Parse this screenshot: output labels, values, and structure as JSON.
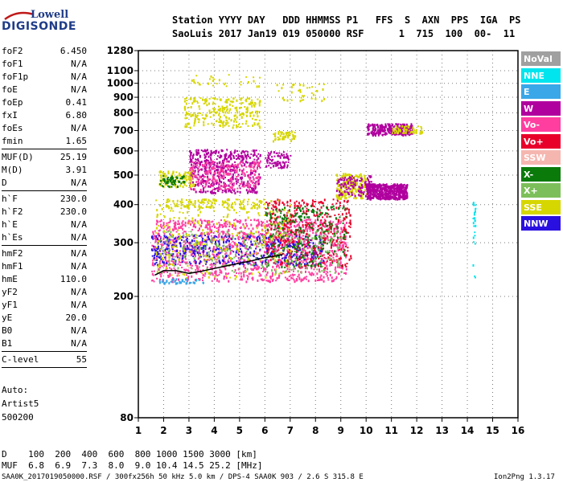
{
  "logo": {
    "line1": "Lowell",
    "line2": "DIGISONDE"
  },
  "header": {
    "row1": "Station YYYY DAY   DDD HHMMSS P1   FFS  S  AXN  PPS  IGA  PS",
    "row2": "SaoLuis 2017 Jan19 019 050000 RSF      1  715  100  00-  11"
  },
  "params_groups": [
    [
      {
        "name": "foF2",
        "value": "6.450"
      },
      {
        "name": "foF1",
        "value": "N/A"
      },
      {
        "name": "foF1p",
        "value": "N/A"
      },
      {
        "name": "foE",
        "value": "N/A"
      },
      {
        "name": "foEp",
        "value": "0.41"
      },
      {
        "name": "fxI",
        "value": "6.80"
      },
      {
        "name": "foEs",
        "value": "N/A"
      },
      {
        "name": "fmin",
        "value": "1.65"
      }
    ],
    [
      {
        "name": "MUF(D)",
        "value": "25.19"
      },
      {
        "name": "M(D)",
        "value": "3.91"
      },
      {
        "name": "D",
        "value": "N/A"
      }
    ],
    [
      {
        "name": "h`F",
        "value": "230.0"
      },
      {
        "name": "h`F2",
        "value": "230.0"
      },
      {
        "name": "h`E",
        "value": "N/A"
      },
      {
        "name": "h`Es",
        "value": "N/A"
      }
    ],
    [
      {
        "name": "hmF2",
        "value": "N/A"
      },
      {
        "name": "hmF1",
        "value": "N/A"
      },
      {
        "name": "hmE",
        "value": "110.0"
      },
      {
        "name": "yF2",
        "value": "N/A"
      },
      {
        "name": "yF1",
        "value": "N/A"
      },
      {
        "name": "yE",
        "value": "20.0"
      },
      {
        "name": "B0",
        "value": "N/A"
      },
      {
        "name": "B1",
        "value": "N/A"
      }
    ],
    [
      {
        "name": "C-level",
        "value": "55"
      }
    ]
  ],
  "notes": [
    "Auto:",
    "Artist5",
    "500200"
  ],
  "legend": [
    {
      "label": "NoVal",
      "color": "#a0a0a0"
    },
    {
      "label": "NNE",
      "color": "#00e5ee"
    },
    {
      "label": "E",
      "color": "#3aa7e8"
    },
    {
      "label": "W",
      "color": "#b0009e"
    },
    {
      "label": "Vo-",
      "color": "#ff3ea0"
    },
    {
      "label": "Vo+",
      "color": "#e8002a"
    },
    {
      "label": "SSW",
      "color": "#f5b6b0"
    },
    {
      "label": "X-",
      "color": "#0a7a0a"
    },
    {
      "label": "X+",
      "color": "#7cbf5a"
    },
    {
      "label": "SSE",
      "color": "#d6d600"
    },
    {
      "label": "NNW",
      "color": "#2a10e0"
    }
  ],
  "bottom": {
    "d_row": "D    100  200  400  600  800 1000 1500 3000 [km]",
    "muf_row": "MUF  6.8  6.9  7.3  8.0  9.0 10.4 14.5 25.2 [MHz]"
  },
  "footer": {
    "left": "SAA0K_2017019050000.RSF / 300fx256h 50 kHz 5.0 km / DPS-4 SAA0K 903 / 2.6 S 315.8 E",
    "right": "Ion2Png 1.3.17"
  },
  "chart_data": {
    "type": "scatter",
    "xlabel": "",
    "ylabel": "",
    "xlim": [
      1,
      16
    ],
    "ylim": [
      80,
      1280
    ],
    "y_scale": "log",
    "x_ticks": [
      1,
      2,
      3,
      4,
      5,
      6,
      7,
      8,
      9,
      10,
      11,
      12,
      13,
      14,
      15,
      16
    ],
    "y_ticks": [
      80,
      200,
      300,
      400,
      500,
      600,
      700,
      800,
      900,
      1000,
      1100,
      1280
    ],
    "trace": {
      "name": "",
      "x": [
        1.65,
        2.0,
        2.5,
        3.0,
        3.5,
        4.0,
        4.5,
        5.0,
        5.5,
        6.0,
        6.5,
        6.7
      ],
      "y": [
        235,
        243,
        243,
        238,
        242,
        247,
        252,
        257,
        262,
        268,
        272,
        275
      ]
    },
    "echo_regions": [
      {
        "legend": "Vo-",
        "x": [
          1.5,
          9.2
        ],
        "y": [
          225,
          360
        ],
        "density": 1400
      },
      {
        "legend": "NNW",
        "x": [
          1.5,
          8.3
        ],
        "y": [
          255,
          320
        ],
        "density": 450
      },
      {
        "legend": "Vo+",
        "x": [
          6.0,
          9.4
        ],
        "y": [
          250,
          420
        ],
        "density": 420
      },
      {
        "legend": "X-",
        "x": [
          6.0,
          9.2
        ],
        "y": [
          250,
          400
        ],
        "density": 260
      },
      {
        "legend": "X+",
        "x": [
          1.8,
          9.0
        ],
        "y": [
          240,
          330
        ],
        "density": 250
      },
      {
        "legend": "SSE",
        "x": [
          1.6,
          7.0
        ],
        "y": [
          230,
          420
        ],
        "density": 260
      },
      {
        "legend": "W",
        "x": [
          3.0,
          5.8
        ],
        "y": [
          440,
          610
        ],
        "density": 520
      },
      {
        "legend": "Vo-",
        "x": [
          3.0,
          5.8
        ],
        "y": [
          450,
          560
        ],
        "density": 220
      },
      {
        "legend": "SSE",
        "x": [
          1.8,
          3.2
        ],
        "y": [
          460,
          520
        ],
        "density": 120
      },
      {
        "legend": "X-",
        "x": [
          1.8,
          2.8
        ],
        "y": [
          460,
          500
        ],
        "density": 60
      },
      {
        "legend": "SSE",
        "x": [
          2.8,
          5.8
        ],
        "y": [
          720,
          900
        ],
        "density": 260
      },
      {
        "legend": "W",
        "x": [
          10.0,
          11.6
        ],
        "y": [
          420,
          470
        ],
        "density": 520
      },
      {
        "legend": "SSE",
        "x": [
          8.8,
          10.0
        ],
        "y": [
          420,
          510
        ],
        "density": 200
      },
      {
        "legend": "W",
        "x": [
          8.8,
          10.2
        ],
        "y": [
          430,
          500
        ],
        "density": 120
      },
      {
        "legend": "W",
        "x": [
          10.0,
          11.8
        ],
        "y": [
          680,
          740
        ],
        "density": 260
      },
      {
        "legend": "SSE",
        "x": [
          11.0,
          12.2
        ],
        "y": [
          690,
          730
        ],
        "density": 60
      },
      {
        "legend": "SSE",
        "x": [
          2.0,
          6.0
        ],
        "y": [
          390,
          420
        ],
        "density": 120
      },
      {
        "legend": "E",
        "x": [
          1.8,
          3.6
        ],
        "y": [
          222,
          230
        ],
        "density": 40
      },
      {
        "legend": "SSE",
        "x": [
          6.4,
          8.4
        ],
        "y": [
          880,
          1000
        ],
        "density": 40
      },
      {
        "legend": "SSE",
        "x": [
          6.3,
          7.2
        ],
        "y": [
          650,
          700
        ],
        "density": 50
      },
      {
        "legend": "W",
        "x": [
          6.0,
          7.0
        ],
        "y": [
          530,
          600
        ],
        "density": 80
      },
      {
        "legend": "NNE",
        "x": [
          14.2,
          14.3
        ],
        "y": [
          230,
          420
        ],
        "density": 25
      },
      {
        "legend": "SSE",
        "x": [
          3.0,
          5.8
        ],
        "y": [
          980,
          1080
        ],
        "density": 30
      }
    ]
  }
}
